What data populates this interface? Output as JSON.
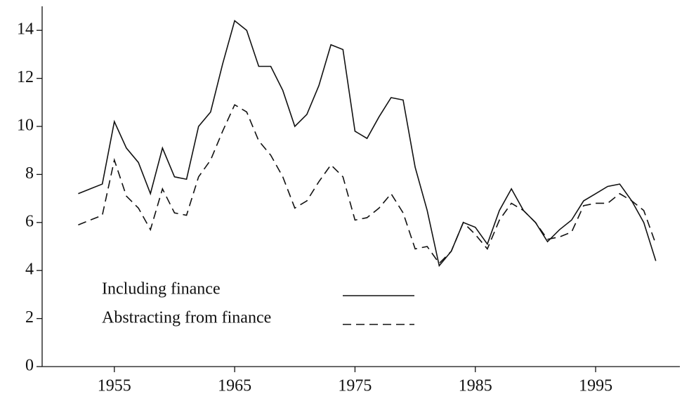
{
  "chart_data": {
    "type": "line",
    "x": [
      1952,
      1953,
      1954,
      1955,
      1956,
      1957,
      1958,
      1959,
      1960,
      1961,
      1962,
      1963,
      1964,
      1965,
      1966,
      1967,
      1968,
      1969,
      1970,
      1971,
      1972,
      1973,
      1974,
      1975,
      1976,
      1977,
      1978,
      1979,
      1980,
      1981,
      1982,
      1983,
      1984,
      1985,
      1986,
      1987,
      1988,
      1989,
      1990,
      1991,
      1992,
      1993,
      1994,
      1995,
      1996,
      1997,
      1998,
      1999,
      2000
    ],
    "series": [
      {
        "name": "Including finance",
        "color": "#111111",
        "style": "solid",
        "values": [
          7.2,
          7.4,
          7.6,
          10.2,
          9.1,
          8.5,
          7.2,
          9.1,
          7.9,
          7.8,
          10.0,
          10.6,
          12.6,
          14.4,
          14.0,
          12.5,
          12.5,
          11.5,
          10.0,
          10.5,
          11.7,
          13.4,
          13.2,
          9.8,
          9.5,
          10.4,
          11.2,
          11.1,
          8.3,
          6.5,
          4.2,
          4.8,
          6.0,
          5.8,
          5.1,
          6.5,
          7.4,
          6.5,
          6.0,
          5.2,
          5.7,
          6.1,
          6.9,
          7.2,
          7.5,
          7.6,
          6.9,
          6.0,
          4.4
        ]
      },
      {
        "name": "Abstracting from finance",
        "color": "#111111",
        "style": "dashed",
        "values": [
          5.9,
          6.1,
          6.3,
          8.6,
          7.1,
          6.6,
          5.7,
          7.4,
          6.4,
          6.3,
          7.9,
          8.6,
          9.8,
          10.9,
          10.6,
          9.4,
          8.8,
          7.9,
          6.6,
          6.9,
          7.7,
          8.4,
          7.9,
          6.1,
          6.2,
          6.6,
          7.2,
          6.4,
          4.9,
          5.0,
          4.3,
          4.8,
          6.0,
          5.5,
          4.9,
          6.1,
          6.8,
          6.5,
          6.0,
          5.3,
          5.4,
          5.6,
          6.7,
          6.8,
          6.8,
          7.2,
          6.9,
          6.5,
          5.1
        ]
      }
    ],
    "xlim": [
      1949,
      2002
    ],
    "xticks": [
      1955,
      1965,
      1975,
      1985,
      1995
    ],
    "ylim": [
      0,
      15
    ],
    "yticks": [
      0,
      2,
      4,
      6,
      8,
      10,
      12,
      14
    ],
    "legend": "lower left"
  }
}
